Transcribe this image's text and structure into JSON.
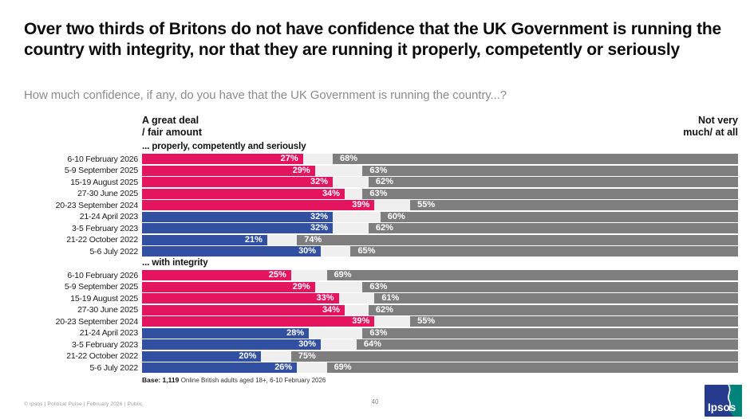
{
  "title": "Over two thirds of Britons do not have confidence that the UK Government is running the country with integrity, nor that they are running it properly, competently or seriously",
  "subtitle": "How much confidence, if any, do you have that the UK Government is running the country...?",
  "headers": {
    "left": [
      "A great deal",
      "/ fair amount"
    ],
    "right": [
      "Not very",
      "much/ at all"
    ]
  },
  "palette": {
    "pink": "#E4155E",
    "blue": "#3250A2",
    "gray": "#7E7E7E",
    "gap": "#EFEFEF",
    "logo_navy": "#273B8E",
    "logo_teal": "#00837A"
  },
  "chart_data": {
    "type": "bar",
    "orientation": "horizontal",
    "stacked": true,
    "unit": "%",
    "xlim": [
      0,
      100
    ],
    "series_names": [
      "A great deal / fair amount",
      "Not very much/ at all"
    ],
    "sections": [
      {
        "label": "... properly, competently and seriously",
        "rows": [
          {
            "date": "6-10 February 2026",
            "confident": 27,
            "not_confident": 68,
            "color": "pink"
          },
          {
            "date": "5-9 September 2025",
            "confident": 29,
            "not_confident": 63,
            "color": "pink"
          },
          {
            "date": "15-19 August 2025",
            "confident": 32,
            "not_confident": 62,
            "color": "pink"
          },
          {
            "date": "27-30 June 2025",
            "confident": 34,
            "not_confident": 63,
            "color": "pink"
          },
          {
            "date": "20-23 September 2024",
            "confident": 39,
            "not_confident": 55,
            "color": "pink"
          },
          {
            "date": "21-24 April 2023",
            "confident": 32,
            "not_confident": 60,
            "color": "blue"
          },
          {
            "date": "3-5 February 2023",
            "confident": 32,
            "not_confident": 62,
            "color": "blue"
          },
          {
            "date": "21-22 October 2022",
            "confident": 21,
            "not_confident": 74,
            "color": "blue"
          },
          {
            "date": "5-6 July 2022",
            "confident": 30,
            "not_confident": 65,
            "color": "blue"
          }
        ]
      },
      {
        "label": "... with integrity",
        "rows": [
          {
            "date": "6-10 February 2026",
            "confident": 25,
            "not_confident": 69,
            "color": "pink"
          },
          {
            "date": "5-9 September 2025",
            "confident": 29,
            "not_confident": 63,
            "color": "pink"
          },
          {
            "date": "15-19 August 2025",
            "confident": 33,
            "not_confident": 61,
            "color": "pink"
          },
          {
            "date": "27-30 June 2025",
            "confident": 34,
            "not_confident": 62,
            "color": "pink"
          },
          {
            "date": "20-23 September 2024",
            "confident": 39,
            "not_confident": 55,
            "color": "pink"
          },
          {
            "date": "21-24 April 2023",
            "confident": 28,
            "not_confident": 63,
            "color": "blue"
          },
          {
            "date": "3-5 February 2023",
            "confident": 30,
            "not_confident": 64,
            "color": "blue"
          },
          {
            "date": "21-22 October 2022",
            "confident": 20,
            "not_confident": 75,
            "color": "blue"
          },
          {
            "date": "5-6 July 2022",
            "confident": 26,
            "not_confident": 69,
            "color": "blue"
          }
        ]
      }
    ]
  },
  "footer": {
    "base_bold": "Base: 1,119",
    "base_rest": "Online British adults aged 18+,  6-10 February 2026",
    "copyright": "© Ipsos | Political Pulse | February 2026 | Public",
    "page_number": "40",
    "logo_text": "Ipsos"
  }
}
